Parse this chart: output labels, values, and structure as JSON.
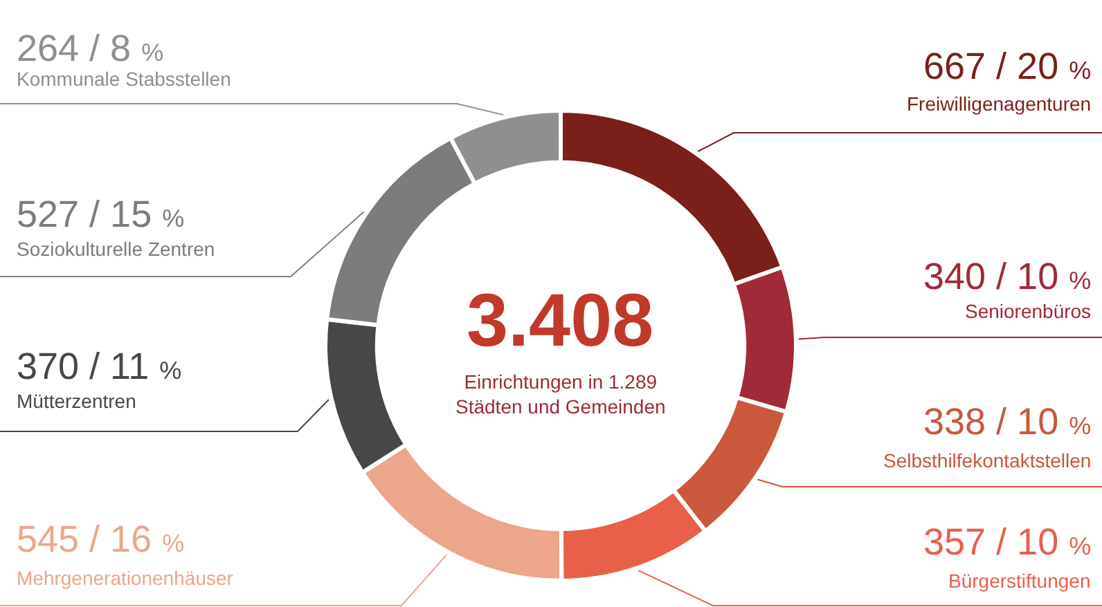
{
  "chart_data": {
    "type": "donut",
    "categories": [
      "Freiwilligenagenturen",
      "Seniorenbüros",
      "Selbsthilfekontaktstellen",
      "Bürgerstiftungen",
      "Mehrgenerationenhäuser",
      "Mütterzentren",
      "Soziokulturelle Zentren",
      "Kommunale Stabsstellen"
    ],
    "values": [
      667,
      340,
      338,
      357,
      545,
      370,
      527,
      264
    ],
    "colors": [
      "#7b1f1a",
      "#a02a38",
      "#c9583c",
      "#e8604a",
      "#eba68c",
      "#474747",
      "#7c7c7c",
      "#8f8f8f"
    ],
    "value_labels": [
      "667 / 20 %",
      "340 / 10 %",
      "338 / 10 %",
      "357 / 10 %",
      "545 / 16 %",
      "370 / 11 %",
      "527 / 15 %",
      "264 / 8 %"
    ],
    "annotations": [
      "3.408",
      "Einrichtungen in 1.289 Städten und Gemeinden"
    ],
    "legend": false
  }
}
